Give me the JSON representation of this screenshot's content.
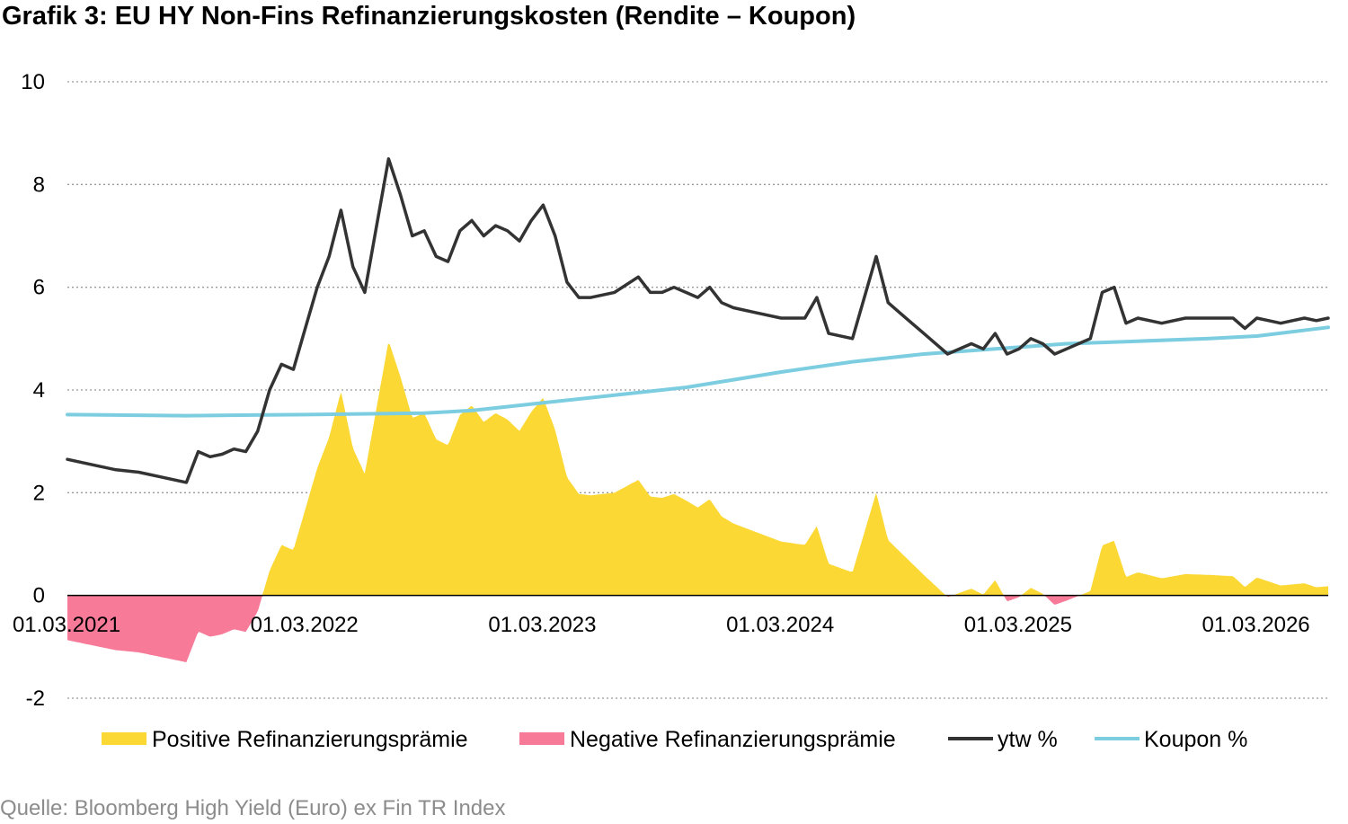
{
  "title": "Grafik 3: EU HY Non-Fins Refinanzierungskosten (Rendite – Koupon)",
  "source": "Quelle: Bloomberg High Yield (Euro) ex Fin TR Index",
  "chart_data": {
    "type": "line",
    "title": "Grafik 3: EU HY Non-Fins Refinanzierungskosten (Rendite – Koupon)",
    "ylim": [
      -2,
      10
    ],
    "y_ticks": [
      "10",
      "8",
      "6",
      "4",
      "2",
      "0",
      "-2"
    ],
    "y_tick_values": [
      10,
      8,
      6,
      4,
      2,
      0,
      -2
    ],
    "x_ticks": [
      "01.03.2021",
      "01.03.2022",
      "01.03.2023",
      "01.03.2024",
      "01.03.2025",
      "01.03.2026"
    ],
    "x_tick_values": [
      2021.0,
      2022.0,
      2023.0,
      2024.0,
      2025.0,
      2026.0
    ],
    "xlim": [
      2021.0,
      2026.3
    ],
    "grid": "horizontal dotted",
    "legend_position": "bottom",
    "colors": {
      "positive": "#FCD835",
      "negative": "#F77A98",
      "ytw": "#333333",
      "coupon": "#7DCDE1",
      "grid": "#999999"
    },
    "legend": [
      {
        "key": "positive",
        "label": "Positive Refinanzierungsprämie"
      },
      {
        "key": "negative",
        "label": "Negative Refinanzierungsprämie"
      },
      {
        "key": "ytw",
        "label": "ytw %"
      },
      {
        "key": "coupon",
        "label": "Koupon %"
      }
    ],
    "series": [
      {
        "name": "ytw %",
        "x": [
          2021.0,
          2021.1,
          2021.2,
          2021.3,
          2021.4,
          2021.5,
          2021.55,
          2021.6,
          2021.65,
          2021.7,
          2021.75,
          2021.8,
          2021.85,
          2021.9,
          2021.95,
          2022.0,
          2022.05,
          2022.1,
          2022.15,
          2022.2,
          2022.25,
          2022.3,
          2022.35,
          2022.4,
          2022.45,
          2022.5,
          2022.55,
          2022.6,
          2022.65,
          2022.7,
          2022.75,
          2022.8,
          2022.85,
          2022.9,
          2022.95,
          2023.0,
          2023.05,
          2023.1,
          2023.15,
          2023.2,
          2023.3,
          2023.4,
          2023.45,
          2023.5,
          2023.55,
          2023.6,
          2023.65,
          2023.7,
          2023.75,
          2023.8,
          2023.9,
          2024.0,
          2024.1,
          2024.15,
          2024.2,
          2024.3,
          2024.4,
          2024.45,
          2024.5,
          2024.6,
          2024.7,
          2024.8,
          2024.85,
          2024.9,
          2024.95,
          2025.0,
          2025.05,
          2025.1,
          2025.15,
          2025.2,
          2025.3,
          2025.35,
          2025.4,
          2025.45,
          2025.5,
          2025.6,
          2025.7,
          2025.8,
          2025.9,
          2025.95,
          2026.0,
          2026.05,
          2026.1,
          2026.15,
          2026.2,
          2026.25,
          2026.3
        ],
        "values": [
          2.65,
          2.55,
          2.45,
          2.4,
          2.3,
          2.2,
          2.8,
          2.7,
          2.75,
          2.85,
          2.8,
          3.2,
          4.0,
          4.5,
          4.4,
          5.2,
          6.0,
          6.6,
          7.5,
          6.4,
          5.9,
          7.2,
          8.5,
          7.8,
          7.0,
          7.1,
          6.6,
          6.5,
          7.1,
          7.3,
          7.0,
          7.2,
          7.1,
          6.9,
          7.3,
          7.6,
          7.0,
          6.1,
          5.8,
          5.8,
          5.9,
          6.2,
          5.9,
          5.9,
          6.0,
          5.9,
          5.8,
          6.0,
          5.7,
          5.6,
          5.5,
          5.4,
          5.4,
          5.8,
          5.1,
          5.0,
          6.6,
          5.7,
          5.5,
          5.1,
          4.7,
          4.9,
          4.8,
          5.1,
          4.7,
          4.8,
          5.0,
          4.9,
          4.7,
          4.8,
          5.0,
          5.9,
          6.0,
          5.3,
          5.4,
          5.3,
          5.4,
          5.4,
          5.4,
          5.2,
          5.4,
          5.35,
          5.3,
          5.35,
          5.4,
          5.35,
          5.4
        ]
      },
      {
        "name": "Koupon %",
        "x": [
          2021.0,
          2021.5,
          2022.0,
          2022.5,
          2022.7,
          2023.0,
          2023.3,
          2023.6,
          2023.8,
          2024.0,
          2024.3,
          2024.6,
          2024.9,
          2025.2,
          2025.5,
          2025.8,
          2026.0,
          2026.3
        ],
        "values": [
          3.52,
          3.5,
          3.52,
          3.55,
          3.6,
          3.75,
          3.9,
          4.05,
          4.2,
          4.35,
          4.55,
          4.7,
          4.8,
          4.9,
          4.95,
          5.0,
          5.05,
          5.22
        ]
      }
    ]
  }
}
